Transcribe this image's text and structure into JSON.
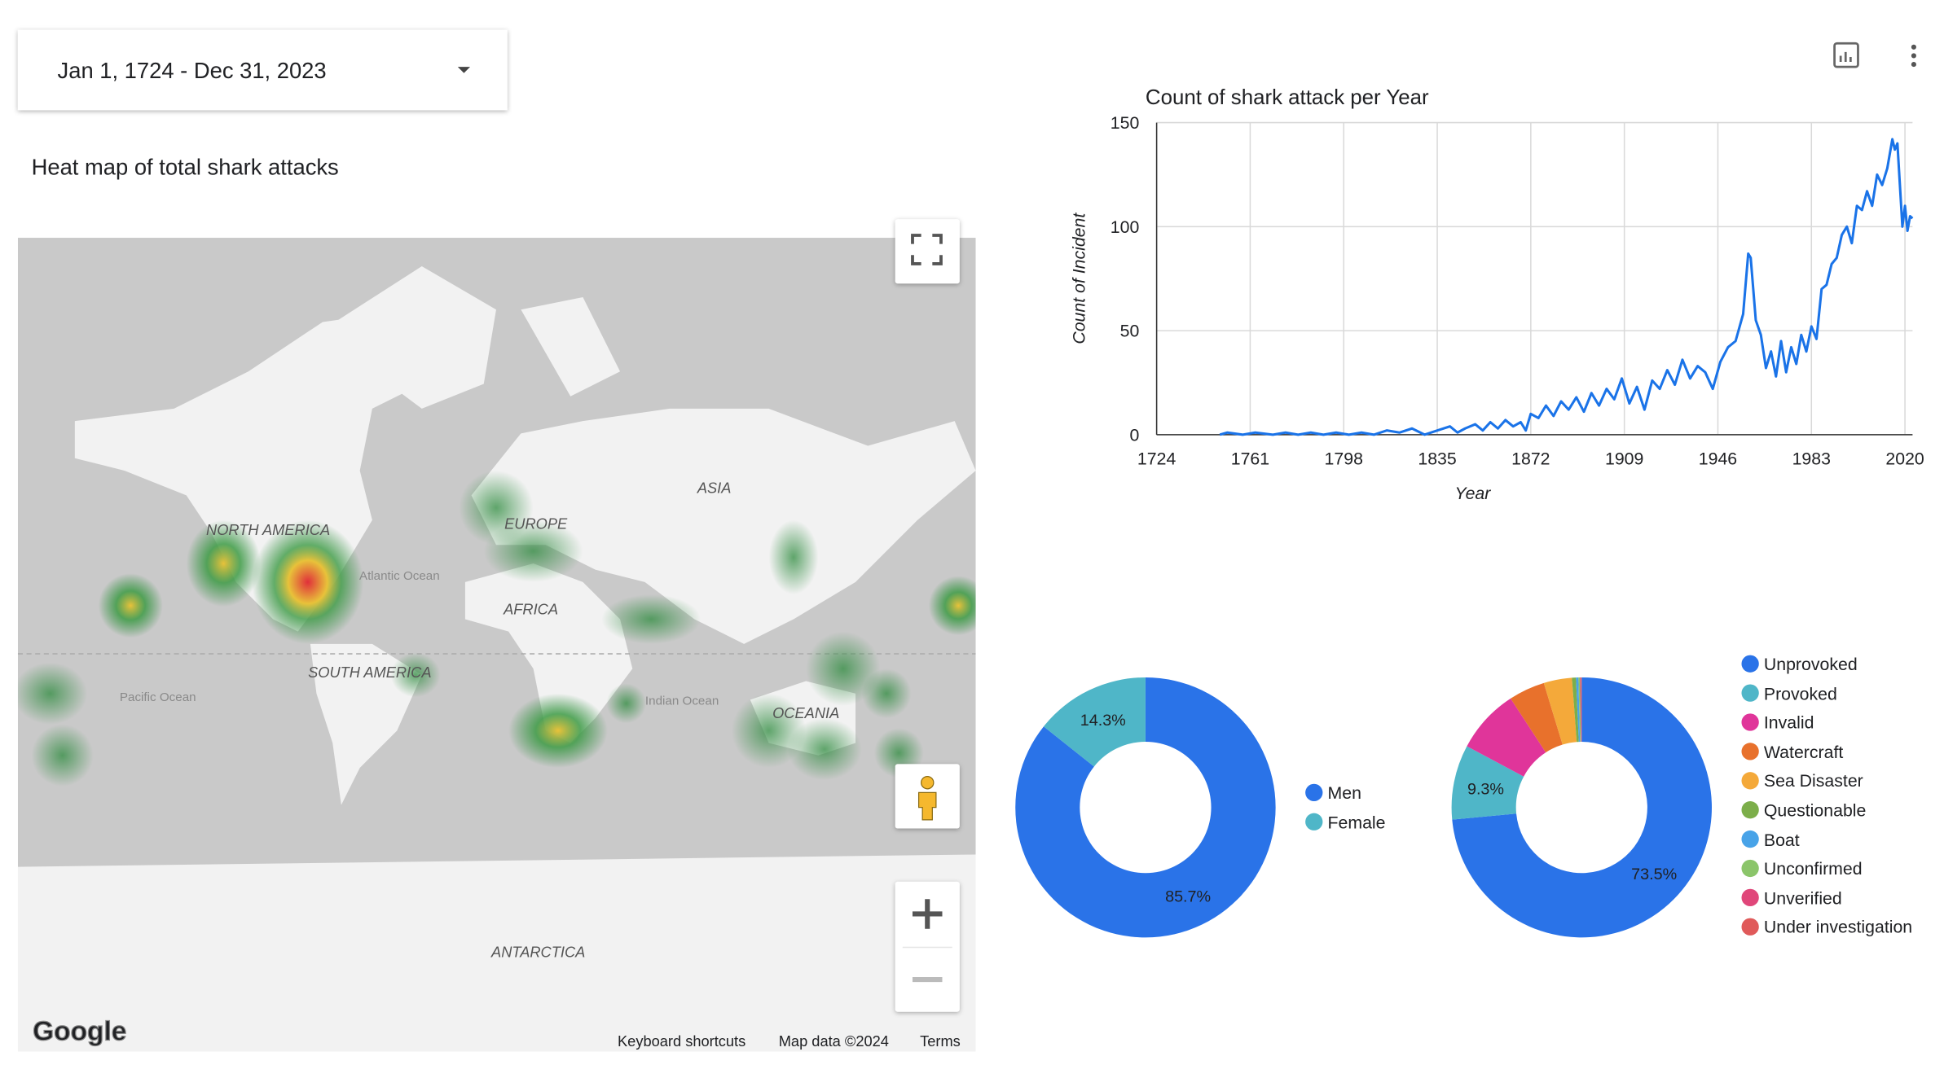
{
  "date_range": "Jan 1, 1724 - Dec 31, 2023",
  "map": {
    "title": "Heat map of total shark attacks",
    "labels": [
      "NORTH AMERICA",
      "EUROPE",
      "ASIA",
      "AFRICA",
      "SOUTH AMERICA",
      "OCEANIA",
      "ANTARCTICA",
      "Atlantic Ocean",
      "Pacific Ocean",
      "Indian Ocean"
    ],
    "logo": "Google",
    "attribution": [
      "Keyboard shortcuts",
      "Map data ©2024",
      "Terms"
    ]
  },
  "chart_data": [
    {
      "type": "line",
      "title": "Count of shark attack per Year",
      "x_label": "Year",
      "y_label": "Count of Incident",
      "color": "#1a73e8",
      "grid": true,
      "xlim": [
        1724,
        2023
      ],
      "xticks": [
        1724,
        1761,
        1798,
        1835,
        1872,
        1909,
        1946,
        1983,
        2020
      ],
      "ylim": [
        0,
        150
      ],
      "yticks": [
        0,
        50,
        100,
        150
      ],
      "x": [
        1749,
        1752,
        1758,
        1763,
        1770,
        1775,
        1780,
        1785,
        1790,
        1795,
        1800,
        1805,
        1810,
        1815,
        1820,
        1825,
        1830,
        1835,
        1840,
        1843,
        1846,
        1850,
        1853,
        1856,
        1859,
        1862,
        1865,
        1868,
        1870,
        1872,
        1875,
        1878,
        1881,
        1884,
        1887,
        1890,
        1893,
        1896,
        1899,
        1902,
        1905,
        1908,
        1911,
        1914,
        1917,
        1920,
        1923,
        1926,
        1929,
        1932,
        1935,
        1938,
        1941,
        1944,
        1947,
        1950,
        1953,
        1956,
        1958,
        1959,
        1961,
        1963,
        1965,
        1967,
        1969,
        1971,
        1973,
        1975,
        1977,
        1979,
        1981,
        1983,
        1985,
        1987,
        1989,
        1991,
        1993,
        1995,
        1997,
        1999,
        2001,
        2003,
        2005,
        2007,
        2009,
        2011,
        2013,
        2015,
        2016,
        2017,
        2018,
        2019,
        2020,
        2021,
        2022,
        2023
      ],
      "values": [
        0,
        1,
        0,
        1,
        0,
        1,
        0,
        1,
        0,
        1,
        0,
        1,
        0,
        2,
        1,
        3,
        0,
        2,
        4,
        1,
        3,
        5,
        2,
        6,
        3,
        7,
        4,
        6,
        2,
        10,
        8,
        14,
        9,
        16,
        12,
        18,
        11,
        20,
        14,
        22,
        17,
        27,
        15,
        23,
        12,
        26,
        22,
        31,
        24,
        36,
        27,
        33,
        30,
        22,
        35,
        42,
        45,
        58,
        87,
        85,
        55,
        48,
        32,
        40,
        28,
        45,
        30,
        42,
        34,
        48,
        40,
        52,
        46,
        70,
        72,
        82,
        85,
        96,
        100,
        92,
        110,
        108,
        117,
        110,
        125,
        120,
        128,
        142,
        137,
        140,
        120,
        100,
        110,
        98,
        105,
        104
      ]
    },
    {
      "type": "pie",
      "donut": true,
      "categories": [
        "Men",
        "Female"
      ],
      "values": [
        85.7,
        14.3
      ],
      "value_labels": [
        "85.7%",
        "14.3%"
      ],
      "colors": [
        "#2a73e8",
        "#4fb6c8"
      ]
    },
    {
      "type": "pie",
      "donut": true,
      "categories": [
        "Unprovoked",
        "Provoked",
        "Invalid",
        "Watercraft",
        "Sea Disaster",
        "Questionable",
        "Boat",
        "Unconfirmed",
        "Unverified",
        "Under investigation"
      ],
      "values": [
        73.5,
        9.3,
        8.0,
        4.5,
        3.5,
        0.5,
        0.3,
        0.2,
        0.1,
        0.1
      ],
      "value_labels": [
        "73.5%",
        "9.3%",
        null,
        null,
        null,
        null,
        null,
        null,
        null,
        null
      ],
      "colors": [
        "#2a73e8",
        "#4fb6c8",
        "#e0359a",
        "#e8712c",
        "#f4a93a",
        "#7cae4a",
        "#48a3e8",
        "#8bc56a",
        "#e0477a",
        "#e05a5a"
      ]
    }
  ]
}
